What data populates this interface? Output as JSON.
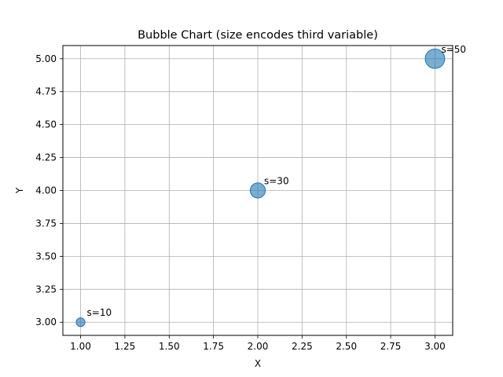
{
  "chart_data": {
    "type": "scatter",
    "title": "Bubble Chart (size encodes third variable)",
    "xlabel": "X",
    "ylabel": "Y",
    "xlim": [
      0.9,
      3.1
    ],
    "ylim": [
      2.9,
      5.1
    ],
    "xticks": [
      "1.00",
      "1.25",
      "1.50",
      "1.75",
      "2.00",
      "2.25",
      "2.50",
      "2.75",
      "3.00"
    ],
    "yticks": [
      "3.00",
      "3.25",
      "3.50",
      "3.75",
      "4.00",
      "4.25",
      "4.50",
      "4.75",
      "5.00"
    ],
    "grid": true,
    "color": "#1f77b4",
    "alpha": 0.6,
    "points": [
      {
        "x": 1,
        "y": 3,
        "size": 10,
        "label": "s=10"
      },
      {
        "x": 2,
        "y": 4,
        "size": 30,
        "label": "s=30"
      },
      {
        "x": 3,
        "y": 5,
        "size": 50,
        "label": "s=50"
      }
    ]
  }
}
